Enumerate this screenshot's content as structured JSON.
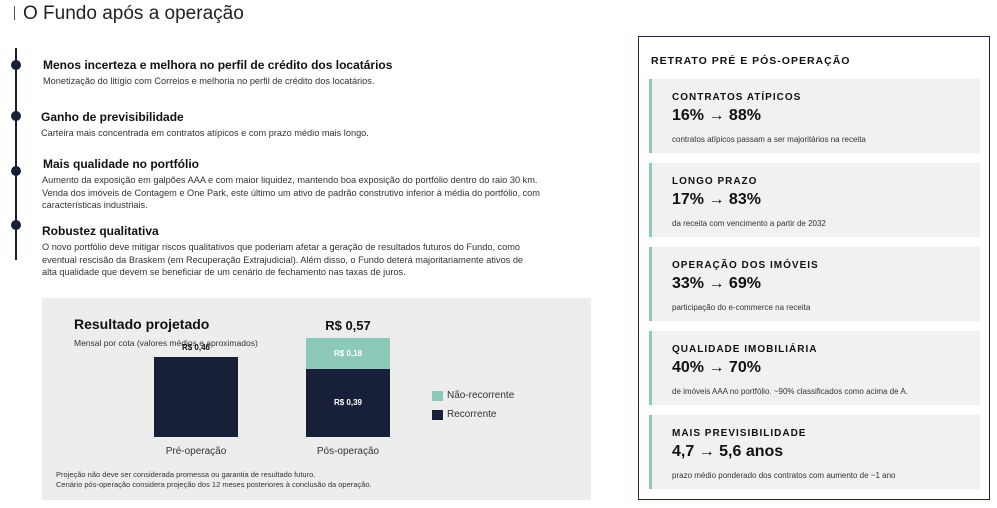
{
  "title": "O Fundo após a operação",
  "timeline": [
    {
      "heading": "Menos incerteza e melhora no perfil de crédito dos locatários",
      "lines": [
        "Monetização do litígio com Correios e melhoria no perfil de crédito dos locatários."
      ]
    },
    {
      "heading": "Ganho de previsibilidade",
      "lines": [
        "Carteira mais concentrada em contratos atípicos e com prazo médio mais longo."
      ]
    },
    {
      "heading": "Mais qualidade no portfólio",
      "lines": [
        "Aumento da exposição em galpões AAA e com maior liquidez, mantendo boa exposição do portfólio dentro do raio 30 km.",
        "Venda dos imóveis de Contagem e One Park, este último um ativo de padrão construtivo inferior à média do portfólio, com",
        "características industriais."
      ]
    },
    {
      "heading": "Robustez qualitativa",
      "lines": [
        "O novo portfólio deve mitigar riscos qualitativos que poderiam afetar a geração de resultados futuros do Fundo, como",
        "eventual rescisão da Braskem (em Recuperação Extrajudicial). Além disso, o Fundo deterá majoritariamente ativos de",
        "alta qualidade que devem se beneficiar de um cenário de fechamento nas taxas de juros."
      ]
    }
  ],
  "result": {
    "title": "Resultado projetado",
    "subtitle": "Mensal por cota (valores médios e aproximados)",
    "notes": [
      "Projeção não deve ser considerada promessa ou garantia de resultado futuro.",
      " Cenário pós-operação considera projeção dos 12 meses posteriores à conclusão da operação."
    ]
  },
  "chart_data": {
    "type": "bar",
    "stacked": true,
    "categories": [
      "Pré-operação",
      "Pós-operação"
    ],
    "series": [
      {
        "name": "Recorrente",
        "values": [
          0.46,
          0.39
        ],
        "labels": [
          "R$ 0,46",
          "R$ 0,39"
        ],
        "color": "#172038"
      },
      {
        "name": "Não-recorrente",
        "values": [
          0,
          0.18
        ],
        "labels": [
          "",
          "R$ 0,18"
        ],
        "color": "#8cc9b9"
      }
    ],
    "totals": [
      "",
      "R$ 0,57"
    ],
    "ylim": [
      0,
      0.57
    ],
    "legend": "right"
  },
  "panel": {
    "title": "RETRATO PRÉ E PÓS-OPERAÇÃO",
    "accent": "#8cc9b9",
    "cards": [
      {
        "label": "CONTRATOS ATÍPICOS",
        "value": "16% → 88%",
        "desc": "contratos atípicos passam a ser majoritários na receita"
      },
      {
        "label": "LONGO PRAZO",
        "value": "17% → 83%",
        "desc": "da receita com vencimento a partir de 2032"
      },
      {
        "label": "OPERAÇÃO DOS IMÓVEIS",
        "value": "33% → 69%",
        "desc": "participação do e-commerce na receita"
      },
      {
        "label": "QUALIDADE IMOBILIÁRIA",
        "value": "40% → 70%",
        "desc": "de imóveis AAA no portfólio. ~90% classificados como acima de A."
      },
      {
        "label": "MAIS PREVISIBILIDADE",
        "value": "4,7 → 5,6 anos",
        "desc": "prazo médio ponderado dos contratos com aumento de ~1 ano"
      }
    ]
  }
}
